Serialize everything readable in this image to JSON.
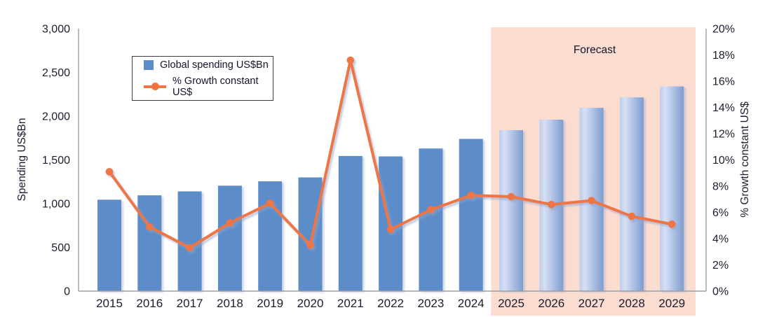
{
  "chart_data": {
    "type": "bar",
    "subtype": "combo-bar-line-dual-axis",
    "title": "",
    "categories": [
      "2015",
      "2016",
      "2017",
      "2018",
      "2019",
      "2020",
      "2021",
      "2022",
      "2023",
      "2024",
      "2025",
      "2026",
      "2027",
      "2028",
      "2029"
    ],
    "series": [
      {
        "name": "Global spending US$Bn",
        "type": "bar",
        "axis": "left",
        "values": [
          1045,
          1095,
          1140,
          1205,
          1255,
          1300,
          1545,
          1540,
          1630,
          1740,
          1840,
          1960,
          2095,
          2215,
          2340
        ]
      },
      {
        "name": "% Growth constant US$",
        "type": "line",
        "axis": "right",
        "values": [
          9.1,
          4.9,
          3.3,
          5.2,
          6.7,
          3.5,
          17.6,
          4.7,
          6.2,
          7.3,
          7.2,
          6.6,
          6.9,
          5.7,
          5.1
        ]
      }
    ],
    "left_axis": {
      "label": "Spending US$Bn",
      "min": 0,
      "max": 3000,
      "step": 500,
      "tick_labels": [
        "0",
        "500",
        "1,000",
        "1,500",
        "2,000",
        "2,500",
        "3,000"
      ]
    },
    "right_axis": {
      "label": "% Growth constant US$",
      "min": 0,
      "max": 20,
      "step": 2,
      "tick_labels": [
        "0%",
        "2%",
        "4%",
        "6%",
        "8%",
        "10%",
        "12%",
        "14%",
        "16%",
        "18%",
        "20%"
      ]
    },
    "forecast": {
      "label": "Forecast",
      "start_category": "2025",
      "end_category": "2029"
    },
    "legend": {
      "position": "top-left-inside"
    },
    "grid": false
  },
  "colors": {
    "bar": "#5b8dc8",
    "forecast_bar_left": "#bfcdea",
    "forecast_bar_light": "#d6dff4",
    "forecast_bar_right": "#7e9ccf",
    "forecast_band": "#fbdcd0",
    "line": "#ee7444",
    "axis": "#9aa0a6",
    "text": "#1c1c30",
    "shadow": "#8ea3c8"
  }
}
